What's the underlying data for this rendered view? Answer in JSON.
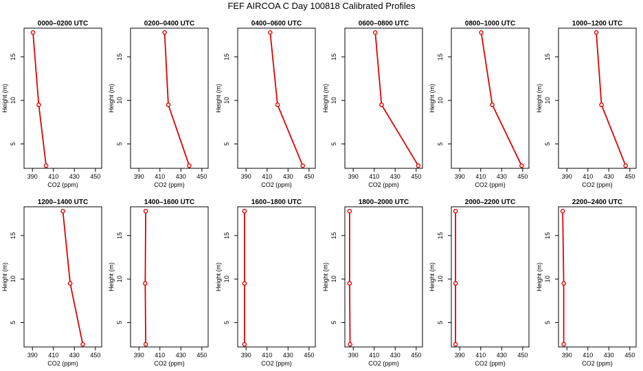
{
  "figure": {
    "title": "FEF AIRCOA C  Day 100818  Calibrated Profiles",
    "series_color": "#dd0000",
    "axis_color": "#000000"
  },
  "chart_data": [
    {
      "type": "line",
      "title": "0000–0200 UTC",
      "xlabel": "CO2 (ppm)",
      "ylabel": "Height (m)",
      "xlim": [
        382,
        456
      ],
      "ylim": [
        2.2,
        18.3
      ],
      "xticks": [
        390,
        410,
        430,
        450
      ],
      "yticks": [
        5,
        10,
        15
      ],
      "series": [
        {
          "name": "profile",
          "x": [
            390.5,
            396,
            403
          ],
          "y": [
            17.8,
            9.5,
            2.5
          ]
        }
      ]
    },
    {
      "type": "line",
      "title": "0200–0400 UTC",
      "xlabel": "CO2 (ppm)",
      "ylabel": "Height (m)",
      "xlim": [
        382,
        456
      ],
      "ylim": [
        2.2,
        18.3
      ],
      "xticks": [
        390,
        410,
        430,
        450
      ],
      "yticks": [
        5,
        10,
        15
      ],
      "series": [
        {
          "name": "profile",
          "x": [
            414.5,
            418,
            438
          ],
          "y": [
            17.8,
            9.5,
            2.5
          ]
        }
      ]
    },
    {
      "type": "line",
      "title": "0400–0600 UTC",
      "xlabel": "CO2 (ppm)",
      "ylabel": "Height (m)",
      "xlim": [
        382,
        456
      ],
      "ylim": [
        2.2,
        18.3
      ],
      "xticks": [
        390,
        410,
        430,
        450
      ],
      "yticks": [
        5,
        10,
        15
      ],
      "series": [
        {
          "name": "profile",
          "x": [
            413,
            420,
            444
          ],
          "y": [
            17.8,
            9.5,
            2.5
          ]
        }
      ]
    },
    {
      "type": "line",
      "title": "0600–0800 UTC",
      "xlabel": "CO2 (ppm)",
      "ylabel": "Height (m)",
      "xlim": [
        382,
        456
      ],
      "ylim": [
        2.2,
        18.3
      ],
      "xticks": [
        390,
        410,
        430,
        450
      ],
      "yticks": [
        5,
        10,
        15
      ],
      "series": [
        {
          "name": "profile",
          "x": [
            411,
            417,
            452
          ],
          "y": [
            17.8,
            9.5,
            2.5
          ]
        }
      ]
    },
    {
      "type": "line",
      "title": "0800–1000 UTC",
      "xlabel": "CO2 (ppm)",
      "ylabel": "Height (m)",
      "xlim": [
        382,
        456
      ],
      "ylim": [
        2.2,
        18.3
      ],
      "xticks": [
        390,
        410,
        430,
        450
      ],
      "yticks": [
        5,
        10,
        15
      ],
      "series": [
        {
          "name": "profile",
          "x": [
            410.5,
            421,
            449
          ],
          "y": [
            17.8,
            9.5,
            2.5
          ]
        }
      ]
    },
    {
      "type": "line",
      "title": "1000–1200 UTC",
      "xlabel": "CO2 (ppm)",
      "ylabel": "Height (m)",
      "xlim": [
        382,
        456
      ],
      "ylim": [
        2.2,
        18.3
      ],
      "xticks": [
        390,
        410,
        430,
        450
      ],
      "yticks": [
        5,
        10,
        15
      ],
      "series": [
        {
          "name": "profile",
          "x": [
            418,
            423,
            446
          ],
          "y": [
            17.8,
            9.5,
            2.5
          ]
        }
      ]
    },
    {
      "type": "line",
      "title": "1200–1400 UTC",
      "xlabel": "CO2 (ppm)",
      "ylabel": "Height (m)",
      "xlim": [
        382,
        456
      ],
      "ylim": [
        2.2,
        18.3
      ],
      "xticks": [
        390,
        410,
        430,
        450
      ],
      "yticks": [
        5,
        10,
        15
      ],
      "series": [
        {
          "name": "profile",
          "x": [
            419,
            426,
            438
          ],
          "y": [
            17.8,
            9.5,
            2.5
          ]
        }
      ]
    },
    {
      "type": "line",
      "title": "1400–1600 UTC",
      "xlabel": "CO2 (ppm)",
      "ylabel": "Height (m)",
      "xlim": [
        382,
        456
      ],
      "ylim": [
        2.2,
        18.3
      ],
      "xticks": [
        390,
        410,
        430,
        450
      ],
      "yticks": [
        5,
        10,
        15
      ],
      "series": [
        {
          "name": "profile",
          "x": [
            396.5,
            396,
            396.5
          ],
          "y": [
            17.8,
            9.5,
            2.5
          ]
        }
      ]
    },
    {
      "type": "line",
      "title": "1600–1800 UTC",
      "xlabel": "CO2 (ppm)",
      "ylabel": "Height (m)",
      "xlim": [
        382,
        456
      ],
      "ylim": [
        2.2,
        18.3
      ],
      "xticks": [
        390,
        410,
        430,
        450
      ],
      "yticks": [
        5,
        10,
        15
      ],
      "series": [
        {
          "name": "profile",
          "x": [
            388.5,
            388.5,
            388.5
          ],
          "y": [
            17.8,
            9.5,
            2.5
          ]
        }
      ]
    },
    {
      "type": "line",
      "title": "1800–2000 UTC",
      "xlabel": "CO2 (ppm)",
      "ylabel": "Height (m)",
      "xlim": [
        382,
        456
      ],
      "ylim": [
        2.2,
        18.3
      ],
      "xticks": [
        390,
        410,
        430,
        450
      ],
      "yticks": [
        5,
        10,
        15
      ],
      "series": [
        {
          "name": "profile",
          "x": [
            386.5,
            386.5,
            387
          ],
          "y": [
            17.8,
            9.5,
            2.5
          ]
        }
      ]
    },
    {
      "type": "line",
      "title": "2000–2200 UTC",
      "xlabel": "CO2 (ppm)",
      "ylabel": "Height (m)",
      "xlim": [
        382,
        456
      ],
      "ylim": [
        2.2,
        18.3
      ],
      "xticks": [
        390,
        410,
        430,
        450
      ],
      "yticks": [
        5,
        10,
        15
      ],
      "series": [
        {
          "name": "profile",
          "x": [
            386,
            386,
            386
          ],
          "y": [
            17.8,
            9.5,
            2.5
          ]
        }
      ]
    },
    {
      "type": "line",
      "title": "2200–2400 UTC",
      "xlabel": "CO2 (ppm)",
      "ylabel": "Height (m)",
      "xlim": [
        382,
        456
      ],
      "ylim": [
        2.2,
        18.3
      ],
      "xticks": [
        390,
        410,
        430,
        450
      ],
      "yticks": [
        5,
        10,
        15
      ],
      "series": [
        {
          "name": "profile",
          "x": [
            386,
            387,
            387
          ],
          "y": [
            17.8,
            9.5,
            2.5
          ]
        }
      ]
    }
  ]
}
